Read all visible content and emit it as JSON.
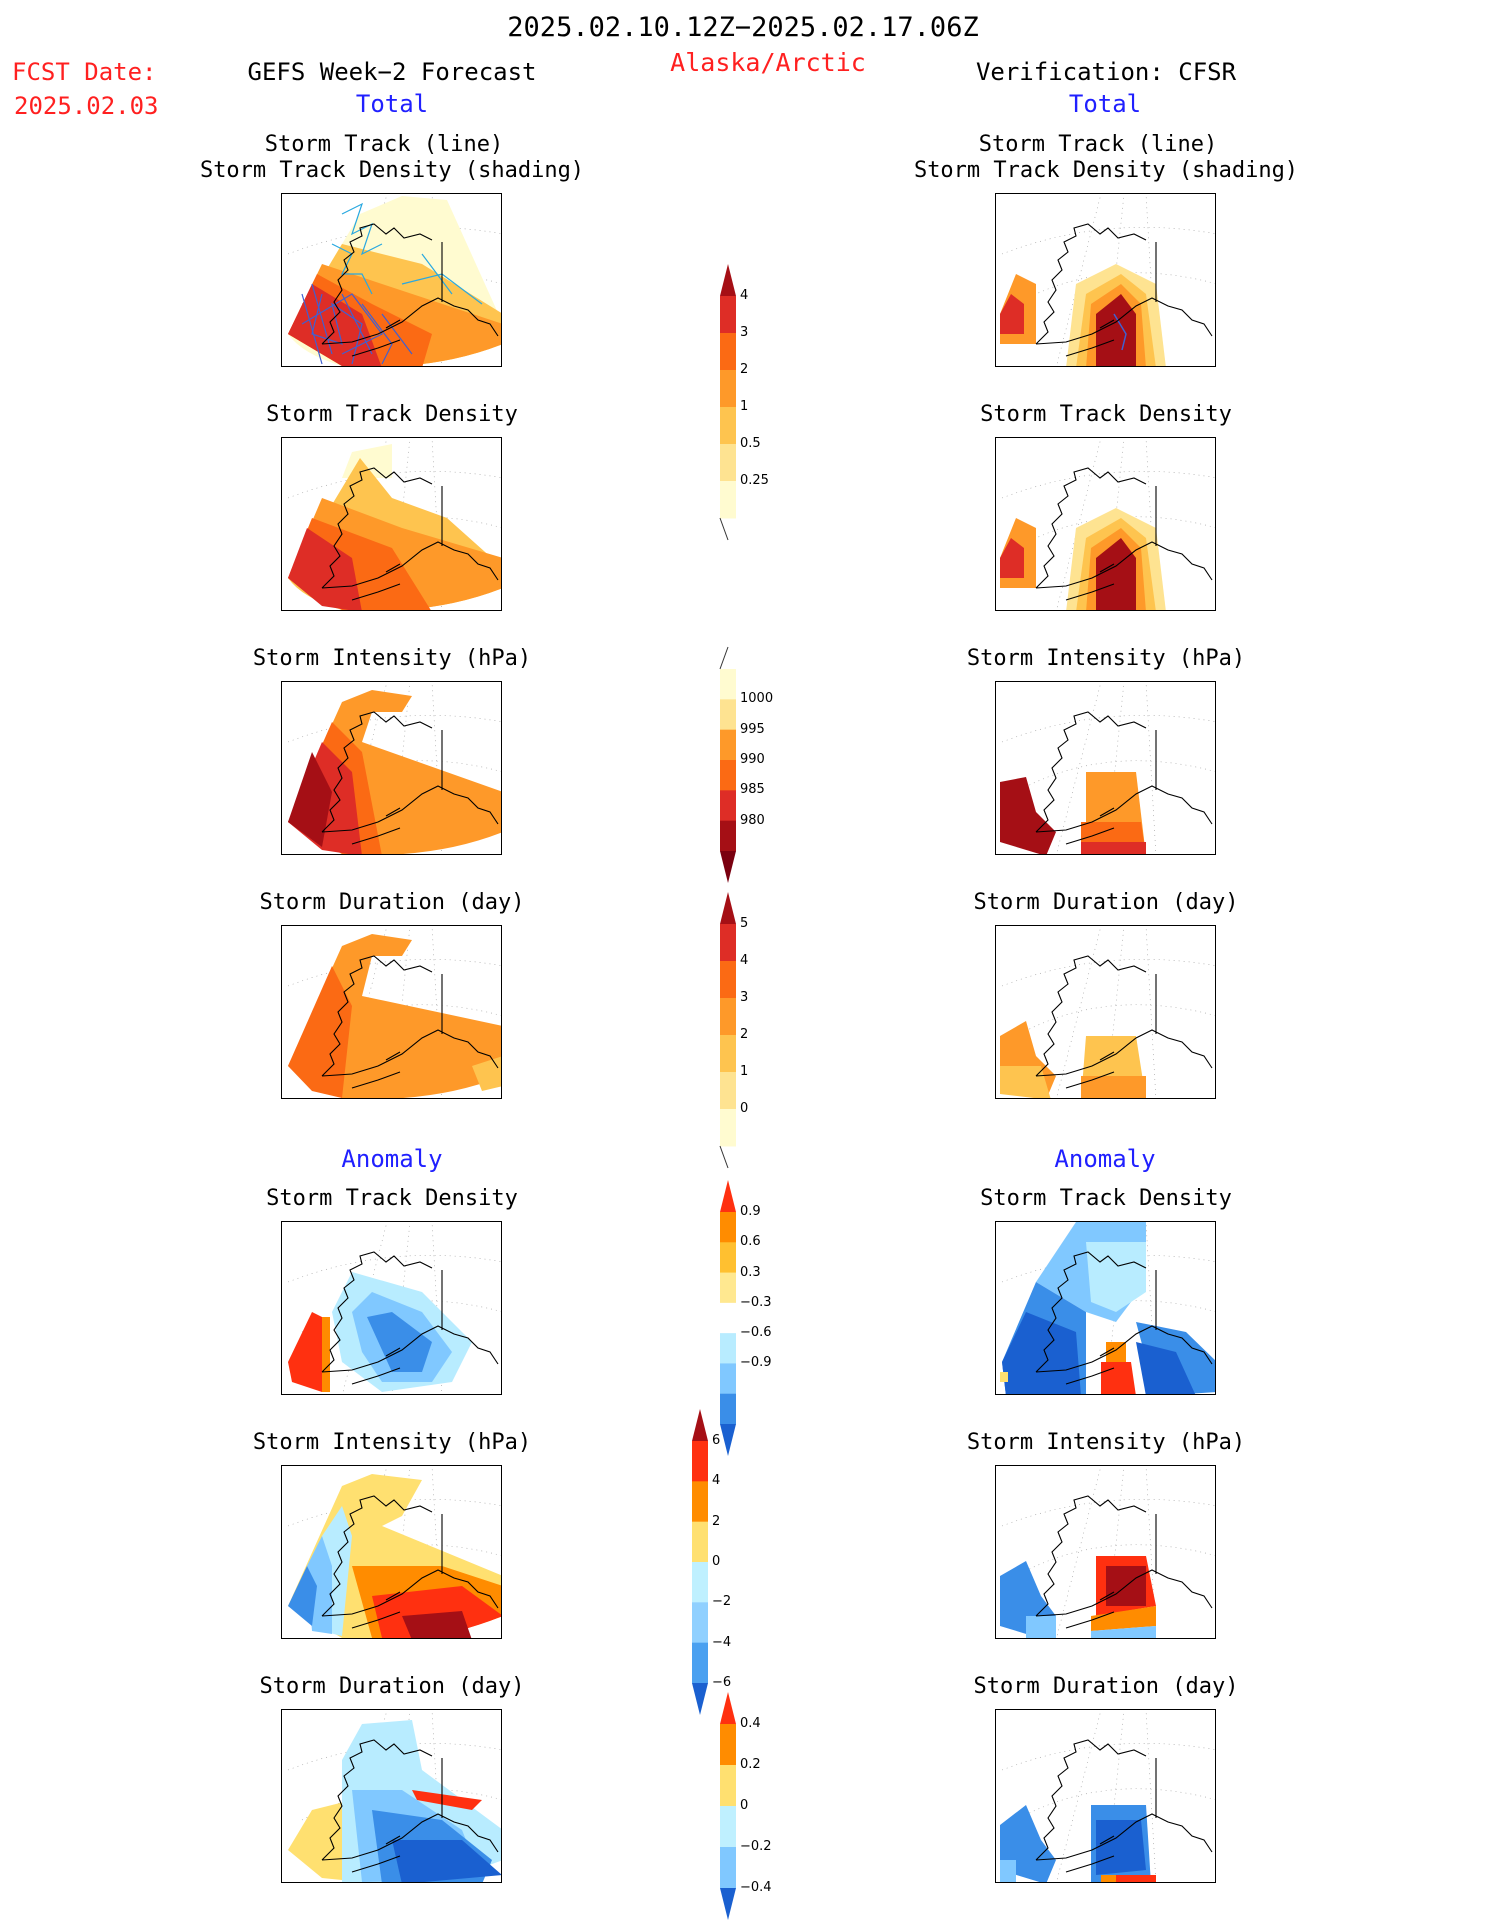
{
  "header": {
    "period": "2025.02.10.12Z−2025.02.17.06Z",
    "region": "Alaska/Arctic",
    "fcst_label": "FCST Date:",
    "fcst_date": "2025.02.03",
    "left_title": "GEFS Week−2 Forecast",
    "right_title": "Verification: CFSR",
    "total_label": "Total",
    "anomaly_label": "Anomaly"
  },
  "panel_titles": {
    "track_line": "Storm Track (line)",
    "track_shading": "Storm Track Density (shading)",
    "density": "Storm Track Density",
    "intensity": "Storm Intensity (hPa)",
    "duration": "Storm Duration (day)"
  },
  "colorbars": {
    "density": {
      "labels": [
        "4",
        "3",
        "2",
        "1",
        "0.5",
        "0.25"
      ],
      "colors": [
        "#a50f15",
        "#de2d26",
        "#fb6a14",
        "#fe9929",
        "#fec44f",
        "#fee391",
        "#fffbd0"
      ]
    },
    "intensity": {
      "labels": [
        "1000",
        "995",
        "990",
        "985",
        "980"
      ],
      "colors": [
        "#fffbd0",
        "#fee391",
        "#fe9929",
        "#fb6a14",
        "#de2d26",
        "#a50f15",
        "#7a0010"
      ]
    },
    "duration": {
      "labels": [
        "5",
        "4",
        "3",
        "2",
        "1",
        "0"
      ],
      "colors": [
        "#a50f15",
        "#de2d26",
        "#fb6a14",
        "#fe9929",
        "#fec44f",
        "#fee391",
        "#fffbd0"
      ]
    },
    "anom_density": {
      "labels": [
        "0.9",
        "0.6",
        "0.3",
        "−0.3",
        "−0.6",
        "−0.9"
      ],
      "colors": [
        "#ff3010",
        "#ff8c00",
        "#ffc030",
        "#ffe890",
        "#ffffff",
        "#b8ecff",
        "#80c8ff",
        "#3a8ee8",
        "#1a60d0"
      ]
    },
    "anom_intensity": {
      "labels": [
        "6",
        "4",
        "2",
        "0",
        "−2",
        "−4",
        "−6"
      ],
      "colors": [
        "#a50f15",
        "#ff3010",
        "#ff8c00",
        "#ffe070",
        "#bff0ff",
        "#90d0ff",
        "#4aa0f0",
        "#1a60d0"
      ]
    },
    "anom_duration": {
      "labels": [
        "0.4",
        "0.2",
        "0",
        "−0.2",
        "−0.4"
      ],
      "colors": [
        "#ff3010",
        "#ff8c00",
        "#ffe070",
        "#bff0ff",
        "#80c8ff",
        "#1a60d0"
      ]
    }
  }
}
